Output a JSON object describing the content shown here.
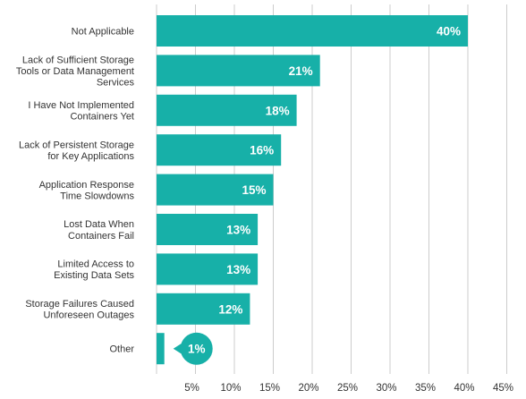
{
  "chart_data": {
    "type": "bar",
    "orientation": "horizontal",
    "categories": [
      "Not Applicable",
      "Lack of Sufficient Storage Tools or Data Management Services",
      "I Have Not Implemented Containers Yet",
      "Lack of Persistent Storage for Key Applications",
      "Application Response Time Slowdowns",
      "Lost Data When Containers Fail",
      "Limited Access to Existing Data Sets",
      "Storage Failures Caused Unforeseen Outages",
      "Other"
    ],
    "category_lines": [
      [
        "Not Applicable"
      ],
      [
        "Lack of Sufficient Storage",
        "Tools or Data Management",
        "Services"
      ],
      [
        "I Have Not Implemented",
        "Containers Yet"
      ],
      [
        "Lack of Persistent Storage",
        "for Key Applications"
      ],
      [
        "Application Response",
        "Time Slowdowns"
      ],
      [
        "Lost Data When",
        "Containers Fail"
      ],
      [
        "Limited Access to",
        "Existing Data Sets"
      ],
      [
        "Storage Failures Caused",
        "Unforeseen Outages"
      ],
      [
        "Other"
      ]
    ],
    "values": [
      40,
      21,
      18,
      16,
      15,
      13,
      13,
      12,
      1
    ],
    "data_labels": [
      "40%",
      "21%",
      "18%",
      "16%",
      "15%",
      "13%",
      "13%",
      "12%",
      "1%"
    ],
    "xticks": [
      5,
      10,
      15,
      20,
      25,
      30,
      35,
      40,
      45
    ],
    "xtick_labels": [
      "5%",
      "10%",
      "15%",
      "20%",
      "25%",
      "30%",
      "35%",
      "40%",
      "45%"
    ],
    "xlim": [
      0,
      45
    ],
    "grid": true,
    "title": "",
    "xlabel": "",
    "ylabel": "",
    "colors": {
      "bar": "#17b0a8",
      "label_text": "#ffffff",
      "category_text": "#333333",
      "tick_text": "#333333",
      "grid": "#cccccc"
    }
  }
}
